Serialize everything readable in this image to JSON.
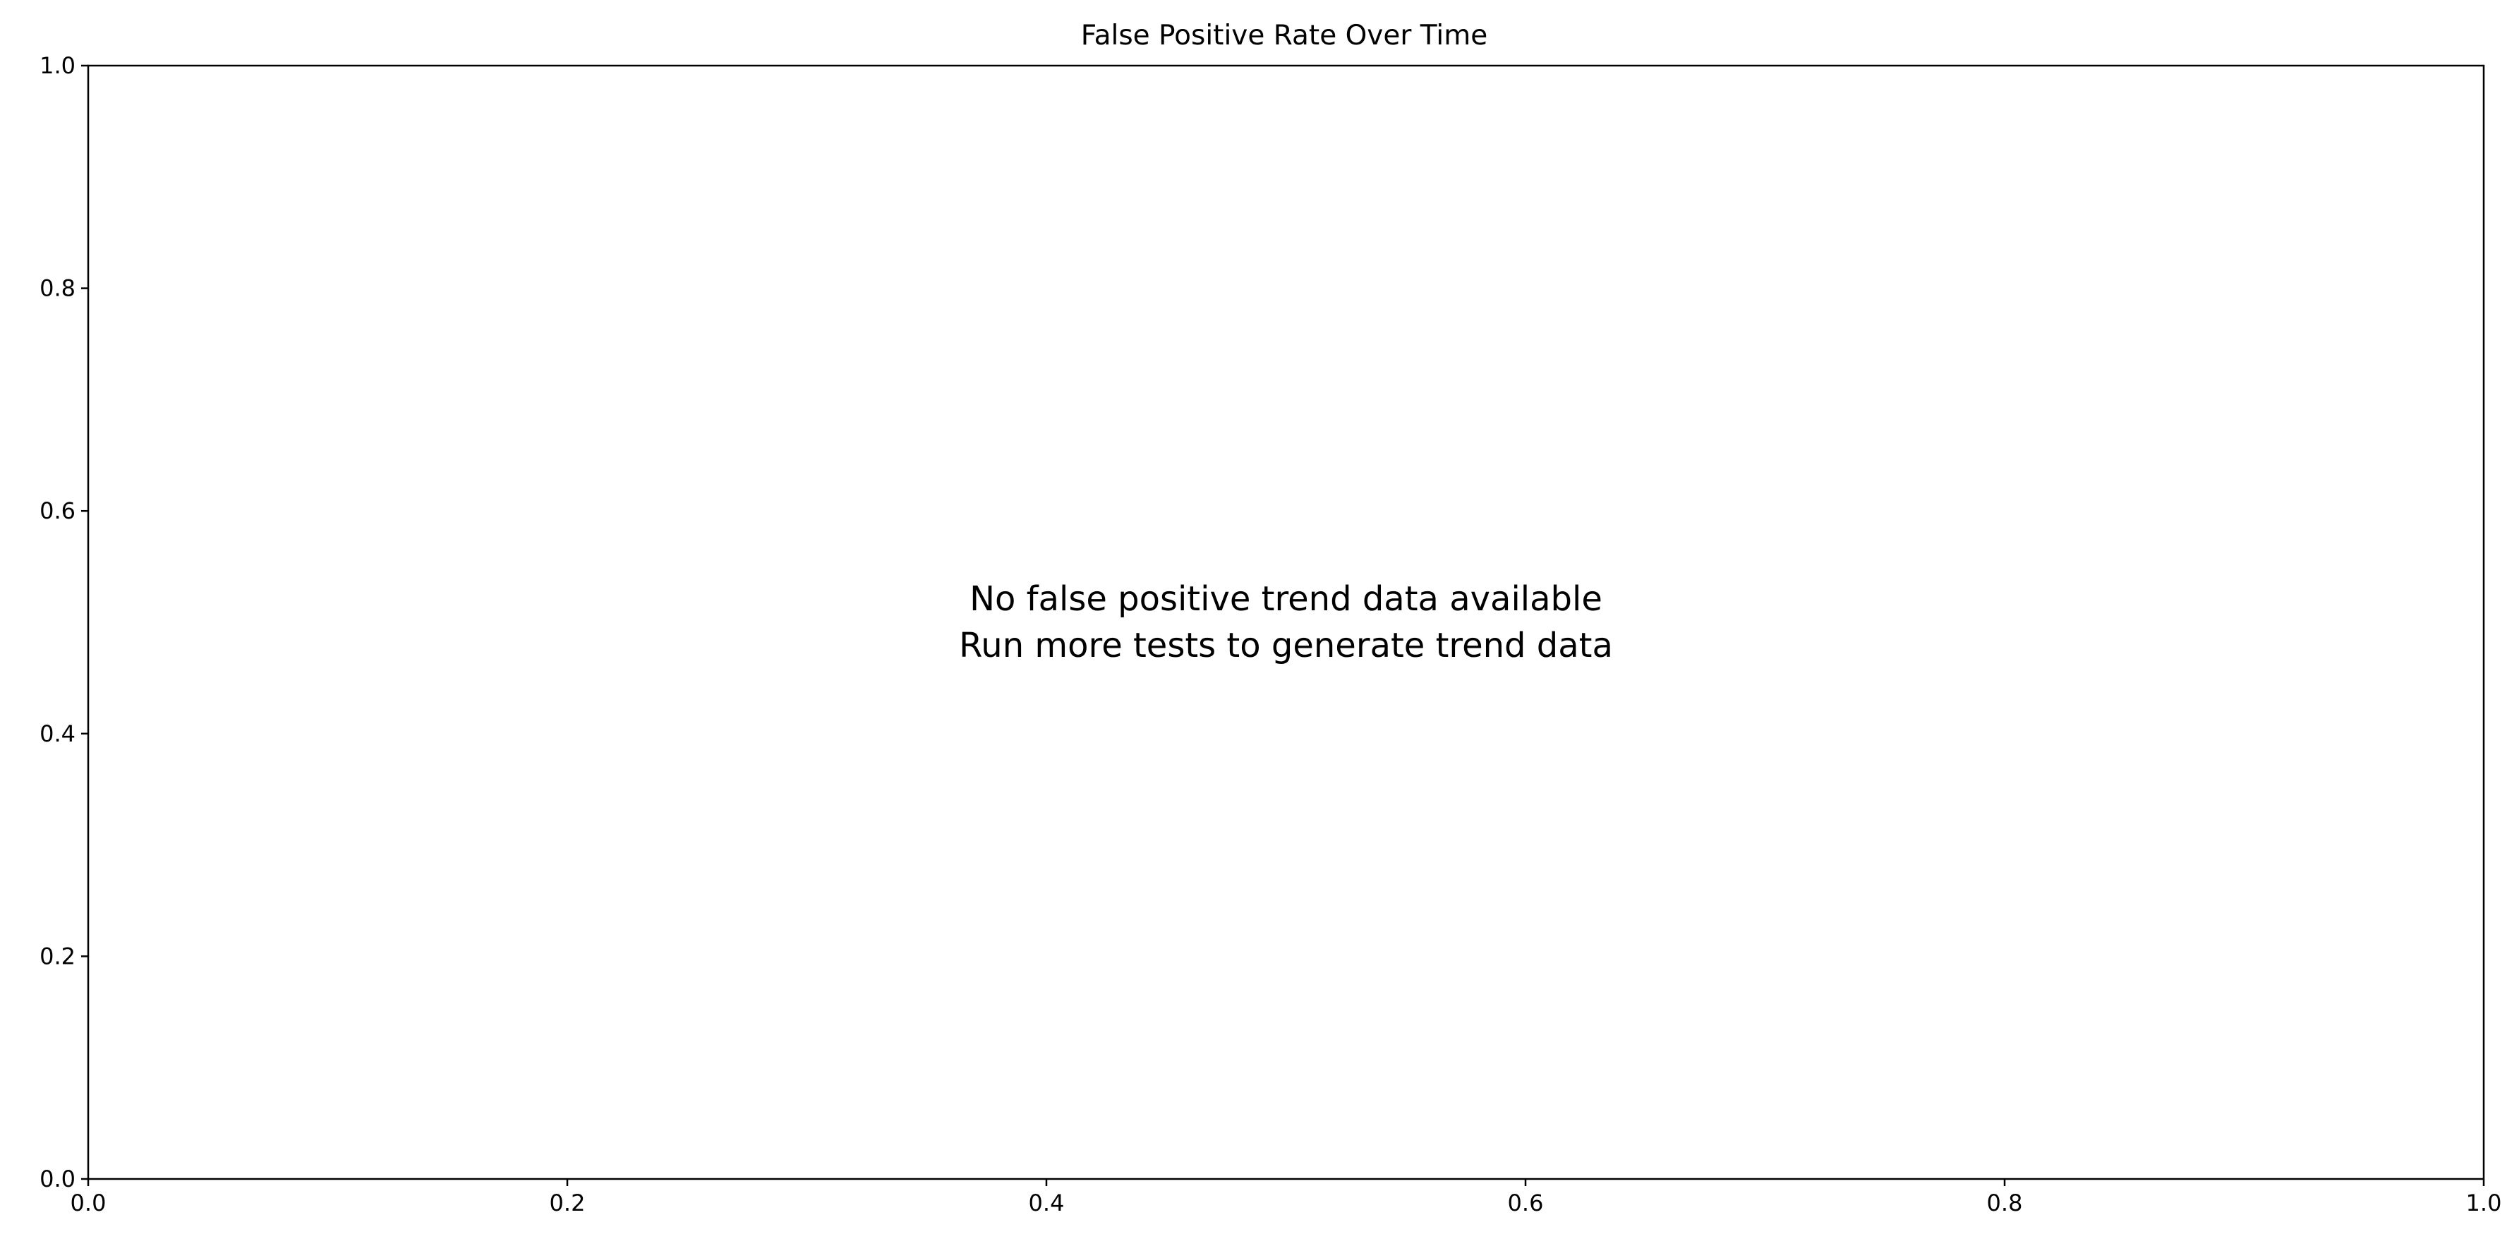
{
  "chart_data": {
    "type": "line",
    "title": "False Positive Rate Over Time",
    "xlabel": "",
    "ylabel": "",
    "xlim": [
      0.0,
      1.0
    ],
    "ylim": [
      0.0,
      1.0
    ],
    "x_ticks": [
      0.0,
      0.2,
      0.4,
      0.6,
      0.8,
      1.0
    ],
    "x_tick_labels": [
      "0.0",
      "0.2",
      "0.4",
      "0.6",
      "0.8",
      "1.0"
    ],
    "y_ticks": [
      0.0,
      0.2,
      0.4,
      0.6,
      0.8,
      1.0
    ],
    "y_tick_labels": [
      "0.0",
      "0.2",
      "0.4",
      "0.6",
      "0.8",
      "1.0"
    ],
    "grid": false,
    "series": [],
    "annotation": {
      "lines": [
        "No false positive trend data available",
        "Run more tests to generate trend data"
      ],
      "x": 0.5,
      "y": 0.5
    }
  }
}
